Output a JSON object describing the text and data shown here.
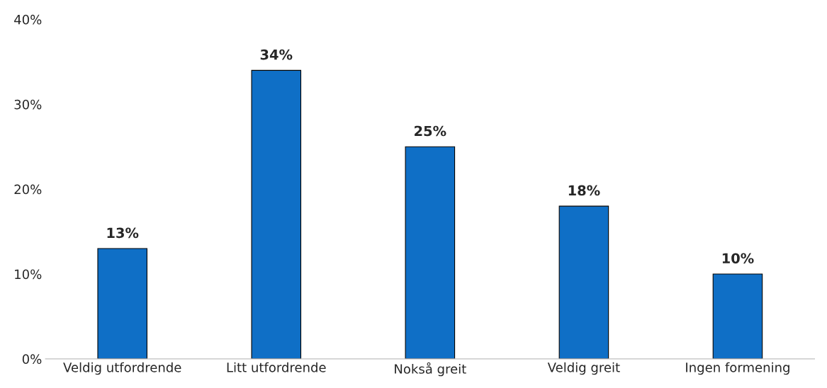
{
  "chart_data": {
    "type": "bar",
    "categories": [
      "Veldig utfordrende",
      "Litt utfordrende",
      "Nokså greit",
      "Veldig greit",
      "Ingen formening"
    ],
    "values": [
      13,
      34,
      25,
      18,
      10
    ],
    "value_labels": [
      "13%",
      "34%",
      "25%",
      "18%",
      "10%"
    ],
    "color": "#0f6fc6",
    "ylim": [
      0,
      40
    ],
    "yticks": [
      {
        "value": 0,
        "label": "0%"
      },
      {
        "value": 10,
        "label": "10%"
      },
      {
        "value": 20,
        "label": "20%"
      },
      {
        "value": 30,
        "label": "30%"
      },
      {
        "value": 40,
        "label": "40%"
      }
    ],
    "grid": false
  }
}
